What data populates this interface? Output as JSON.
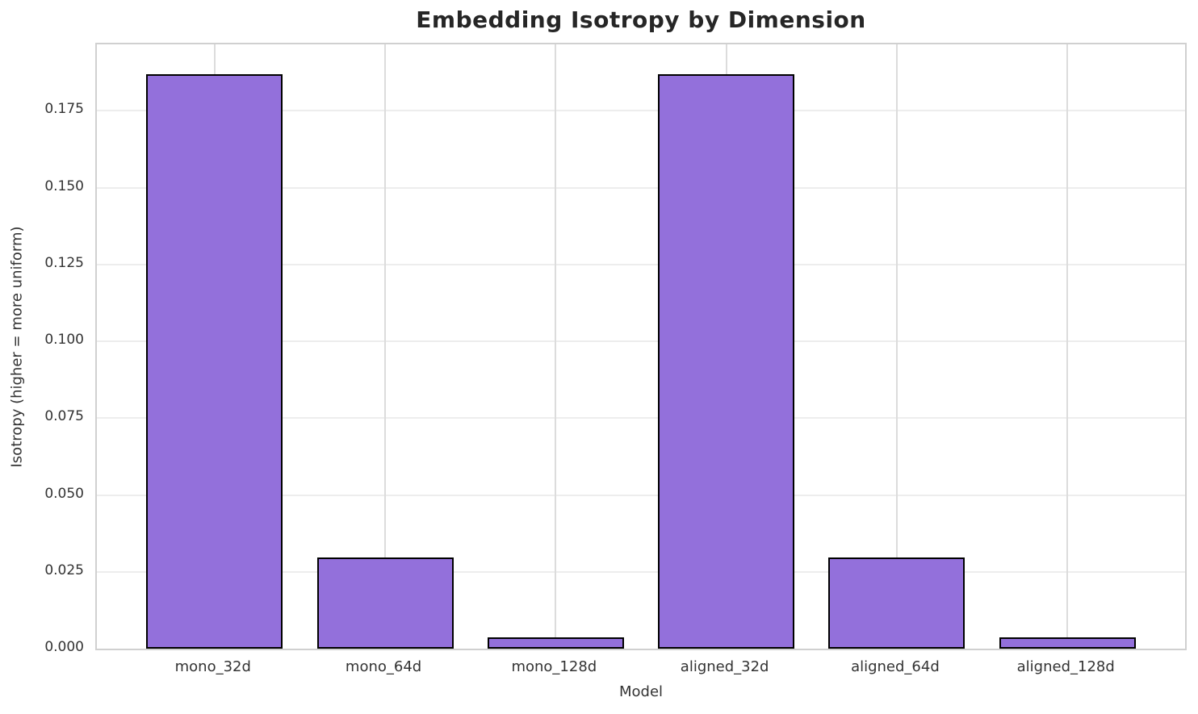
{
  "chart_data": {
    "type": "bar",
    "title": "Embedding Isotropy by Dimension",
    "xlabel": "Model",
    "ylabel": "Isotropy (higher = more uniform)",
    "categories": [
      "mono_32d",
      "mono_64d",
      "mono_128d",
      "aligned_32d",
      "aligned_64d",
      "aligned_128d"
    ],
    "values": [
      0.187,
      0.0297,
      0.0037,
      0.187,
      0.0297,
      0.0037
    ],
    "yticks": [
      0.0,
      0.025,
      0.05,
      0.075,
      0.1,
      0.125,
      0.15,
      0.175
    ],
    "ytick_decimals": 3,
    "ylim": [
      0,
      0.1966
    ],
    "x_margin_units": 0.69,
    "bar_width_units": 0.8,
    "grid": true,
    "legend": null,
    "colors": {
      "bar_fill": "#9370DB",
      "bar_edge": "#000000",
      "grid_vertical": "#dcdcdc",
      "grid_horizontal": "#ededed",
      "spine": "#d0d0d0",
      "title_text": "#262626",
      "label_text": "#333333",
      "background": "#ffffff"
    }
  }
}
